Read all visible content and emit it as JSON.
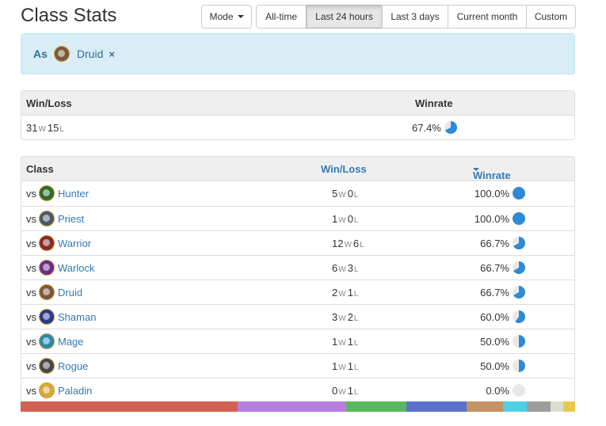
{
  "title": "Class Stats",
  "mode_button": {
    "label": "Mode"
  },
  "time_ranges": [
    {
      "label": "All-time",
      "active": false
    },
    {
      "label": "Last 24 hours",
      "active": true
    },
    {
      "label": "Last 3 days",
      "active": false
    },
    {
      "label": "Current month",
      "active": false
    },
    {
      "label": "Custom",
      "active": false
    }
  ],
  "filter": {
    "prefix": "As",
    "class_name": "Druid",
    "remove_icon": "×"
  },
  "summary": {
    "header_winloss": "Win/Loss",
    "header_winrate": "Winrate",
    "wins": "31",
    "w_suffix": "W",
    "losses": "15",
    "l_suffix": "L",
    "winrate": "67.4%",
    "winrate_fraction": 0.674
  },
  "matchups": {
    "header_class": "Class",
    "header_winloss": "Win/Loss",
    "header_winrate": "Winrate",
    "vs_label": "vs",
    "rows": [
      {
        "class": "Hunter",
        "wins": "5",
        "losses": "0",
        "winrate": "100.0%",
        "fraction": 1.0,
        "icon": "hunter-icon",
        "color": "#2d6a2d"
      },
      {
        "class": "Priest",
        "wins": "1",
        "losses": "0",
        "winrate": "100.0%",
        "fraction": 1.0,
        "icon": "priest-icon",
        "color": "#4a5a6a"
      },
      {
        "class": "Warrior",
        "wins": "12",
        "losses": "6",
        "winrate": "66.7%",
        "fraction": 0.667,
        "icon": "warrior-icon",
        "color": "#8b2a2a"
      },
      {
        "class": "Warlock",
        "wins": "6",
        "losses": "3",
        "winrate": "66.7%",
        "fraction": 0.667,
        "icon": "warlock-icon",
        "color": "#6a2d8a"
      },
      {
        "class": "Druid",
        "wins": "2",
        "losses": "1",
        "winrate": "66.7%",
        "fraction": 0.667,
        "icon": "druid-icon",
        "color": "#7a5a3a"
      },
      {
        "class": "Shaman",
        "wins": "3",
        "losses": "2",
        "winrate": "60.0%",
        "fraction": 0.6,
        "icon": "shaman-icon",
        "color": "#2a3a8a"
      },
      {
        "class": "Mage",
        "wins": "1",
        "losses": "1",
        "winrate": "50.0%",
        "fraction": 0.5,
        "icon": "mage-icon",
        "color": "#2a8aa8"
      },
      {
        "class": "Rogue",
        "wins": "1",
        "losses": "1",
        "winrate": "50.0%",
        "fraction": 0.5,
        "icon": "rogue-icon",
        "color": "#4a4a4a"
      },
      {
        "class": "Paladin",
        "wins": "0",
        "losses": "1",
        "winrate": "0.0%",
        "fraction": 0.0,
        "icon": "paladin-icon",
        "color": "#d4a83a"
      }
    ]
  },
  "distribution": [
    {
      "share": 0.391,
      "color": "#d36150"
    },
    {
      "share": 0.196,
      "color": "#b87ee0"
    },
    {
      "share": 0.109,
      "color": "#59b85b"
    },
    {
      "share": 0.109,
      "color": "#5c6fcb"
    },
    {
      "share": 0.065,
      "color": "#c49263"
    },
    {
      "share": 0.043,
      "color": "#4dcfe8"
    },
    {
      "share": 0.043,
      "color": "#9d9d9d"
    },
    {
      "share": 0.022,
      "color": "#dcdcd0"
    },
    {
      "share": 0.022,
      "color": "#e8c94d"
    }
  ],
  "colors": {
    "accent": "#337ab7",
    "pie": "#2e8ad6",
    "pie_empty": "#e8e8e8"
  }
}
